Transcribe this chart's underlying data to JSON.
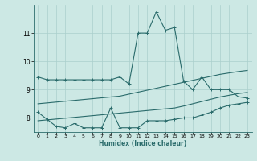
{
  "xlabel": "Humidex (Indice chaleur)",
  "bg_color": "#cce8e4",
  "line_color": "#2a6b6b",
  "grid_color": "#aacfcc",
  "xlim": [
    -0.5,
    23.5
  ],
  "ylim": [
    7.5,
    12.0
  ],
  "yticks": [
    8,
    9,
    10,
    11
  ],
  "xticks": [
    0,
    1,
    2,
    3,
    4,
    5,
    6,
    7,
    8,
    9,
    10,
    11,
    12,
    13,
    14,
    15,
    16,
    17,
    18,
    19,
    20,
    21,
    22,
    23
  ],
  "line1_x": [
    0,
    1,
    2,
    3,
    4,
    5,
    6,
    7,
    8,
    9,
    10,
    11,
    12,
    13,
    14,
    15,
    16,
    17,
    18,
    19,
    20,
    21,
    22,
    23
  ],
  "line1_y": [
    9.45,
    9.35,
    9.35,
    9.35,
    9.35,
    9.35,
    9.35,
    9.35,
    9.35,
    9.45,
    9.2,
    11.0,
    11.0,
    11.75,
    11.1,
    11.2,
    9.3,
    9.0,
    9.45,
    9.0,
    9.0,
    9.0,
    8.75,
    8.7
  ],
  "line2_x": [
    0,
    1,
    2,
    3,
    4,
    5,
    6,
    7,
    8,
    9,
    10,
    11,
    12,
    13,
    14,
    15,
    16,
    17,
    18,
    19,
    20,
    21,
    22,
    23
  ],
  "line2_y": [
    8.2,
    7.95,
    7.7,
    7.65,
    7.8,
    7.65,
    7.65,
    7.65,
    8.35,
    7.65,
    7.65,
    7.65,
    7.9,
    7.9,
    7.9,
    7.95,
    8.0,
    8.0,
    8.1,
    8.2,
    8.35,
    8.45,
    8.5,
    8.55
  ],
  "line3_x": [
    0,
    1,
    2,
    3,
    4,
    5,
    6,
    7,
    8,
    9,
    10,
    11,
    12,
    13,
    14,
    15,
    16,
    17,
    18,
    19,
    20,
    21,
    22,
    23
  ],
  "line3_y": [
    7.9,
    7.93,
    7.96,
    7.99,
    8.02,
    8.05,
    8.08,
    8.11,
    8.14,
    8.17,
    8.2,
    8.23,
    8.26,
    8.29,
    8.32,
    8.35,
    8.42,
    8.5,
    8.58,
    8.66,
    8.74,
    8.8,
    8.86,
    8.9
  ],
  "line4_x": [
    0,
    1,
    2,
    3,
    4,
    5,
    6,
    7,
    8,
    9,
    10,
    11,
    12,
    13,
    14,
    15,
    16,
    17,
    18,
    19,
    20,
    21,
    22,
    23
  ],
  "line4_y": [
    8.5,
    8.53,
    8.56,
    8.59,
    8.62,
    8.65,
    8.68,
    8.71,
    8.74,
    8.77,
    8.84,
    8.91,
    8.98,
    9.05,
    9.12,
    9.19,
    9.26,
    9.33,
    9.4,
    9.47,
    9.54,
    9.59,
    9.64,
    9.68
  ]
}
